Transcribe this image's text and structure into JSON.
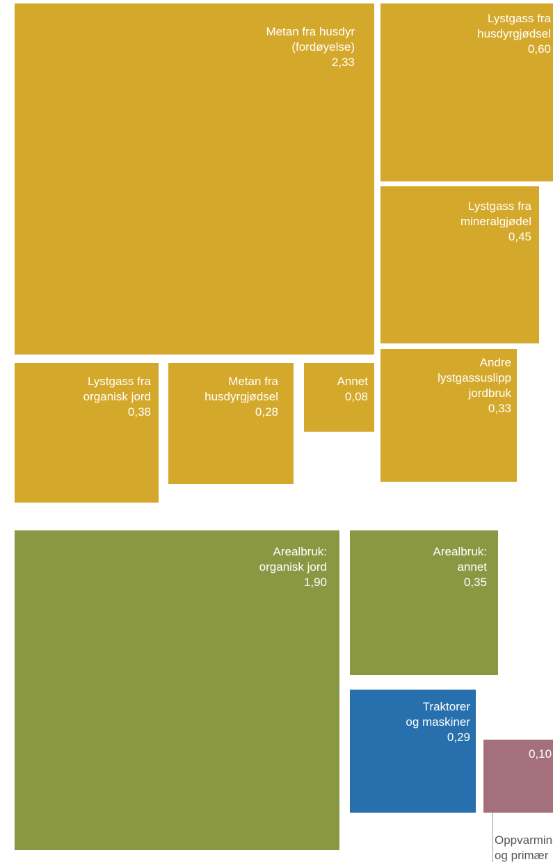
{
  "chart_data": {
    "type": "treemap",
    "unit": "",
    "groups": [
      {
        "color": "#d4a82a",
        "items": [
          {
            "id": "metan-husdyr",
            "lines": [
              "Metan fra husdyr",
              "(fordøyelse)"
            ],
            "value_label": "2,33",
            "value": 2.33
          },
          {
            "id": "lystgass-husdyrgjodsel",
            "lines": [
              "Lystgass fra",
              "husdyrgjødsel"
            ],
            "value_label": "0,60",
            "value": 0.6
          },
          {
            "id": "lystgass-mineralgjodel",
            "lines": [
              "Lystgass fra",
              "mineralgjødel"
            ],
            "value_label": "0,45",
            "value": 0.45
          },
          {
            "id": "lystgass-organisk-jord",
            "lines": [
              "Lystgass fra",
              "organisk jord"
            ],
            "value_label": "0,38",
            "value": 0.38
          },
          {
            "id": "metan-husdyrgjodsel",
            "lines": [
              "Metan fra",
              "husdyrgjødsel"
            ],
            "value_label": "0,28",
            "value": 0.28
          },
          {
            "id": "annet",
            "lines": [
              "Annet"
            ],
            "value_label": "0,08",
            "value": 0.08
          },
          {
            "id": "andre-lystgassutslipp",
            "lines": [
              "Andre",
              "lystgassuslipp",
              "jordbruk"
            ],
            "value_label": "0,33",
            "value": 0.33
          }
        ]
      },
      {
        "color": "#8a9843",
        "items": [
          {
            "id": "arealbruk-organisk-jord",
            "lines": [
              "Arealbruk:",
              "organisk jord"
            ],
            "value_label": "1,90",
            "value": 1.9
          },
          {
            "id": "arealbruk-annet",
            "lines": [
              "Arealbruk:",
              "annet"
            ],
            "value_label": "0,35",
            "value": 0.35
          }
        ]
      },
      {
        "color": "#2770ad",
        "items": [
          {
            "id": "traktorer-maskiner",
            "lines": [
              "Traktorer",
              "og maskiner"
            ],
            "value_label": "0,29",
            "value": 0.29
          }
        ]
      },
      {
        "color": "#a5707d",
        "items": [
          {
            "id": "oppvarming",
            "lines": [],
            "value_label": "0,10",
            "value": 0.1
          }
        ]
      }
    ],
    "callout": {
      "for": "oppvarming",
      "lines": [
        "Oppvarming",
        "og primær"
      ]
    }
  }
}
